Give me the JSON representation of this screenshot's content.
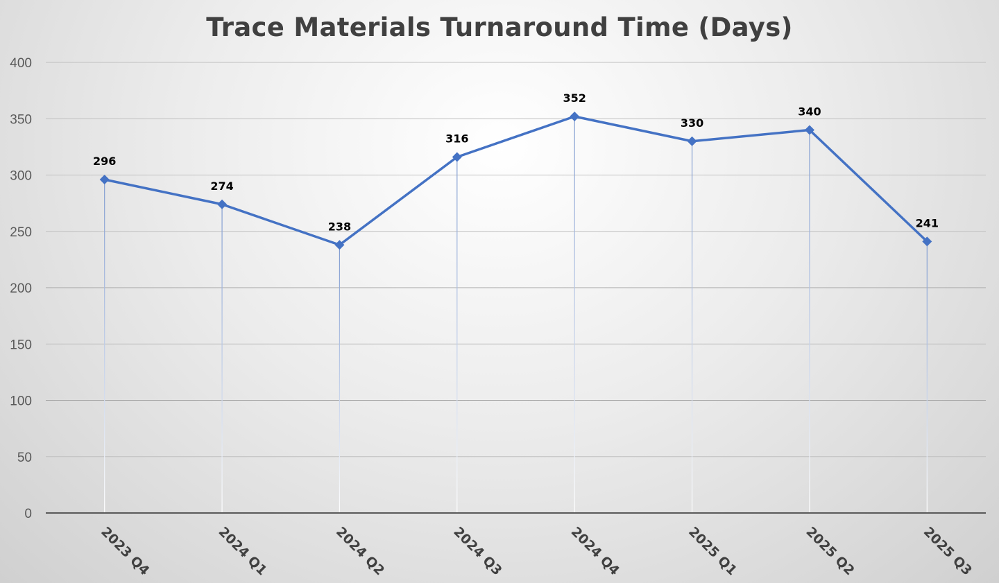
{
  "chart_data": {
    "type": "line",
    "title": "Trace Materials Turnaround Time (Days)",
    "xlabel": "",
    "ylabel": "",
    "categories": [
      "2023 Q4",
      "2024 Q1",
      "2024 Q2",
      "2024 Q3",
      "2024 Q4",
      "2025 Q1",
      "2025 Q2",
      "2025 Q3"
    ],
    "series": [
      {
        "values": [
          296,
          274,
          238,
          316,
          352,
          330,
          340,
          241
        ],
        "color": "#4472C4",
        "marker": "diamond"
      }
    ],
    "data_labels": true,
    "drop_lines": true,
    "ylim": [
      0,
      400
    ],
    "yticks": [
      0,
      50,
      100,
      150,
      200,
      250,
      300,
      350,
      400
    ],
    "grid": true,
    "legend": "none"
  }
}
